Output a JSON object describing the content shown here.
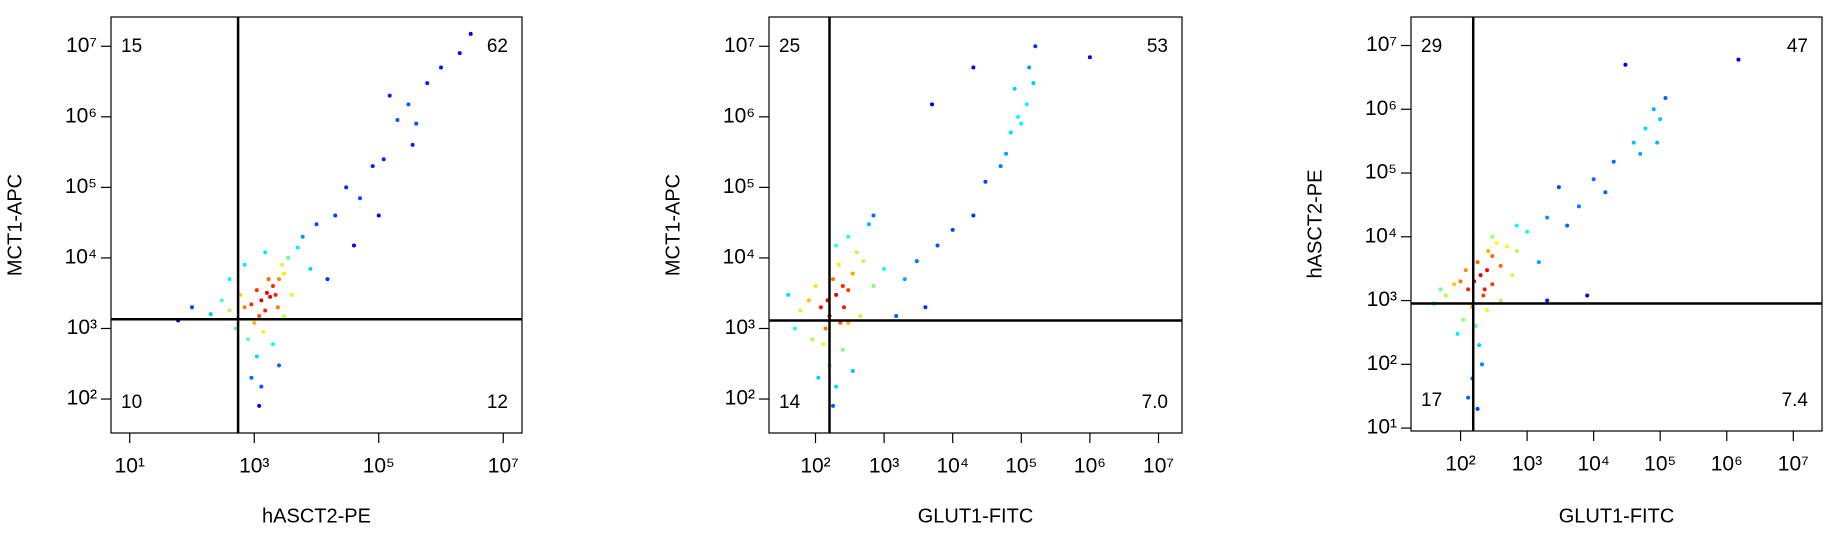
{
  "chart_data": [
    {
      "type": "scatter",
      "x_label": "hASCT2-PE",
      "y_label": "MCT1-APC",
      "xscale": "log",
      "yscale": "log",
      "xlim": [
        5,
        20000000
      ],
      "ylim": [
        33,
        26000000
      ],
      "xticks": [
        {
          "value": 10,
          "label": "10¹"
        },
        {
          "value": 1000,
          "label": "10³"
        },
        {
          "value": 100000,
          "label": "10⁵"
        },
        {
          "value": 10000000,
          "label": "10⁷"
        }
      ],
      "yticks": [
        {
          "value": 100,
          "label": "10²"
        },
        {
          "value": 1000,
          "label": "10³"
        },
        {
          "value": 10000,
          "label": "10⁴"
        },
        {
          "value": 100000,
          "label": "10⁵"
        },
        {
          "value": 1000000,
          "label": "10⁶"
        },
        {
          "value": 10000000,
          "label": "10⁷"
        }
      ],
      "gates": {
        "x": 550,
        "y": 1350
      },
      "quadrants": {
        "corners": [
          "upper-left",
          "upper-right",
          "lower-left",
          "lower-right"
        ],
        "values": [
          15,
          62,
          10,
          12
        ]
      },
      "x": [
        1600,
        2000,
        1300,
        2500,
        1800,
        1100,
        3000,
        1500,
        2200,
        900,
        1200,
        2800,
        3500,
        700,
        1000,
        1700,
        2400,
        600,
        400,
        1400,
        800,
        1100,
        900,
        1300,
        500,
        300,
        200,
        100,
        60,
        2000,
        4000,
        5000,
        6000,
        8000,
        10000,
        1500,
        700,
        400,
        20000,
        30000,
        50000,
        80000,
        120000,
        200000,
        300000,
        150000,
        400000,
        600000,
        1000000,
        2000000,
        3000000,
        350000,
        100000,
        40000,
        15000,
        2500,
        1200,
        3000
      ],
      "y": [
        3200,
        4000,
        2500,
        5000,
        2800,
        3500,
        6000,
        1800,
        3000,
        2200,
        1500,
        8000,
        10000,
        2000,
        1200,
        5000,
        2000,
        3000,
        1800,
        900,
        700,
        400,
        200,
        150,
        1000,
        2500,
        1600,
        2000,
        1300,
        600,
        3000,
        14000,
        20000,
        7000,
        30000,
        12000,
        8000,
        5000,
        40000,
        100000,
        70000,
        200000,
        250000,
        900000,
        1500000,
        2000000,
        800000,
        3000000,
        5000000,
        8000000,
        15000000,
        400000,
        40000,
        15000,
        5000,
        300,
        80,
        1500
      ]
    },
    {
      "type": "scatter",
      "x_label": "GLUT1-FITC",
      "y_label": "MCT1-APC",
      "xscale": "log",
      "yscale": "log",
      "xlim": [
        21,
        22000000
      ],
      "ylim": [
        33,
        26000000
      ],
      "xticks": [
        {
          "value": 100,
          "label": "10²"
        },
        {
          "value": 1000,
          "label": "10³"
        },
        {
          "value": 10000,
          "label": "10⁴"
        },
        {
          "value": 100000,
          "label": "10⁵"
        },
        {
          "value": 1000000,
          "label": "10⁶"
        },
        {
          "value": 10000000,
          "label": "10⁷"
        }
      ],
      "yticks": [
        {
          "value": 100,
          "label": "10²"
        },
        {
          "value": 1000,
          "label": "10³"
        },
        {
          "value": 10000,
          "label": "10⁴"
        },
        {
          "value": 100000,
          "label": "10⁵"
        },
        {
          "value": 1000000,
          "label": "10⁶"
        },
        {
          "value": 10000000,
          "label": "10⁷"
        }
      ],
      "gates": {
        "x": 160,
        "y": 1300
      },
      "quadrants": {
        "corners": [
          "upper-left",
          "upper-right",
          "lower-left",
          "lower-right"
        ],
        "values": [
          25,
          53,
          14,
          7
        ],
        "value_labels": [
          "25",
          "53",
          "14",
          "7.0"
        ]
      },
      "x": [
        200,
        250,
        150,
        180,
        300,
        120,
        220,
        160,
        350,
        100,
        260,
        140,
        80,
        60,
        400,
        500,
        200,
        130,
        160,
        200,
        180,
        110,
        90,
        50,
        40,
        300,
        700,
        1000,
        2000,
        3000,
        6000,
        10000,
        20000,
        30000,
        50000,
        70000,
        90000,
        120000,
        80000,
        150000,
        100000,
        60000,
        130000,
        160000,
        1000000,
        4000,
        1500,
        600,
        300,
        700,
        20000,
        5000,
        250,
        350,
        450,
        230
      ],
      "y": [
        3000,
        4000,
        2500,
        5000,
        3500,
        2000,
        8000,
        1500,
        6000,
        4000,
        2000,
        1000,
        2500,
        1800,
        12000,
        9000,
        15000,
        600,
        300,
        150,
        80,
        200,
        700,
        1000,
        3000,
        1200,
        4000,
        7000,
        5000,
        9000,
        15000,
        25000,
        40000,
        120000,
        200000,
        600000,
        1000000,
        1500000,
        2500000,
        3000000,
        800000,
        300000,
        5000000,
        10000000,
        7000000,
        2000,
        1500,
        30000,
        20000,
        40000,
        5000000,
        1500000,
        500,
        250,
        1500,
        1200
      ]
    },
    {
      "type": "scatter",
      "x_label": "GLUT1-FITC",
      "y_label": "hASCT2-PE",
      "xscale": "log",
      "yscale": "log",
      "xlim": [
        18,
        27000000
      ],
      "ylim": [
        9,
        28000000
      ],
      "xticks": [
        {
          "value": 100,
          "label": "10²"
        },
        {
          "value": 1000,
          "label": "10³"
        },
        {
          "value": 10000,
          "label": "10⁴"
        },
        {
          "value": 100000,
          "label": "10⁵"
        },
        {
          "value": 1000000,
          "label": "10⁶"
        },
        {
          "value": 10000000,
          "label": "10⁷"
        }
      ],
      "yticks": [
        {
          "value": 10,
          "label": "10¹"
        },
        {
          "value": 100,
          "label": "10²"
        },
        {
          "value": 1000,
          "label": "10³"
        },
        {
          "value": 10000,
          "label": "10⁴"
        },
        {
          "value": 100000,
          "label": "10⁵"
        },
        {
          "value": 1000000,
          "label": "10⁶"
        },
        {
          "value": 10000000,
          "label": "10⁷"
        }
      ],
      "gates": {
        "x": 155,
        "y": 900
      },
      "quadrants": {
        "corners": [
          "upper-left",
          "upper-right",
          "lower-left",
          "lower-right"
        ],
        "values": [
          29,
          47,
          17,
          7.4
        ]
      },
      "x": [
        200,
        250,
        160,
        180,
        300,
        130,
        220,
        150,
        350,
        100,
        260,
        120,
        80,
        60,
        400,
        500,
        170,
        190,
        210,
        150,
        130,
        110,
        90,
        50,
        40,
        300,
        700,
        1000,
        2000,
        3000,
        6000,
        10000,
        20000,
        40000,
        60000,
        80000,
        120000,
        100000,
        50000,
        90000,
        4000,
        1500,
        700,
        300,
        8000,
        1500000,
        30000,
        250,
        400,
        230,
        600,
        180,
        2000,
        15000
      ],
      "y": [
        2500,
        3000,
        2000,
        4000,
        5000,
        1500,
        1200,
        800,
        8000,
        2000,
        6000,
        3000,
        1800,
        1200,
        3500,
        7000,
        400,
        200,
        100,
        60,
        30,
        500,
        300,
        1500,
        900,
        1800,
        6000,
        12000,
        20000,
        60000,
        30000,
        80000,
        150000,
        300000,
        500000,
        1000000,
        1500000,
        700000,
        200000,
        300000,
        15000,
        4000,
        15000,
        10000,
        1200,
        6000000,
        5000000,
        700,
        1000,
        1500,
        2500,
        20,
        1000,
        50000
      ]
    }
  ]
}
